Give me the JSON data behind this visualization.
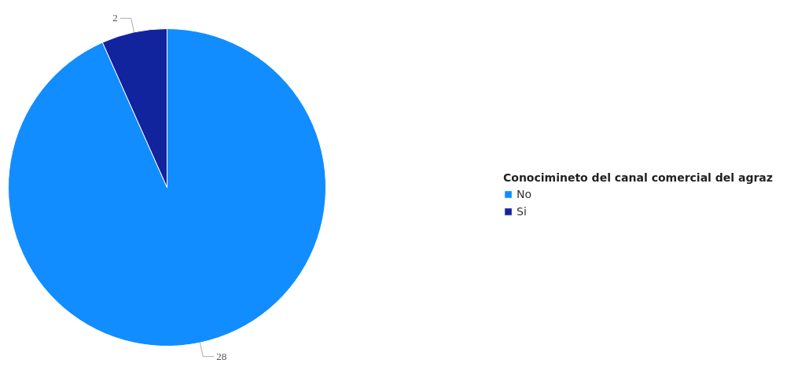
{
  "chart_data": {
    "type": "pie",
    "legend_title": "Conocimineto del canal comercial del agraz",
    "categories": [
      "No",
      "Si"
    ],
    "values": [
      28,
      2
    ],
    "colors": [
      "#118dff",
      "#12239e"
    ],
    "data_labels": true,
    "legend": "right"
  }
}
